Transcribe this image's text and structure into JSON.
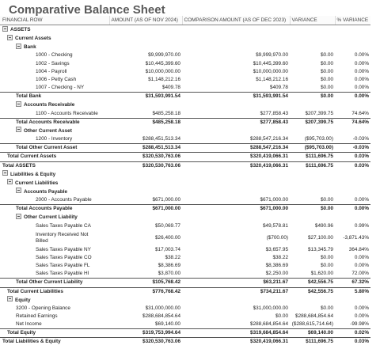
{
  "title": "Comparative Balance Sheet",
  "headers": {
    "financial_row": "FINANCIAL ROW",
    "amount": "AMOUNT (AS OF NOV 2024)",
    "comparison": "COMPARISON AMOUNT (AS OF DEC 2023)",
    "variance": "VARIANCE",
    "pct_variance": "% VARIANCE"
  },
  "rows": [
    {
      "label": "ASSETS",
      "indent": 0,
      "type": "section",
      "toggle": true,
      "amount": "",
      "comparison": "",
      "variance": "",
      "pct": ""
    },
    {
      "label": "Current Assets",
      "indent": 1,
      "type": "section",
      "toggle": true,
      "amount": "",
      "comparison": "",
      "variance": "",
      "pct": ""
    },
    {
      "label": "Bank",
      "indent": 2,
      "type": "section",
      "toggle": true,
      "amount": "",
      "comparison": "",
      "variance": "",
      "pct": ""
    },
    {
      "label": "1000 - Checking",
      "indent": 3,
      "type": "item",
      "amount": "$9,999,970.00",
      "comparison": "$9,999,970.00",
      "variance": "$0.00",
      "pct": "0.00%"
    },
    {
      "label": "1002 - Savings",
      "indent": 3,
      "type": "item",
      "amount": "$10,445,399.60",
      "comparison": "$10,445,399.60",
      "variance": "$0.00",
      "pct": "0.00%"
    },
    {
      "label": "1004 - Payroll",
      "indent": 3,
      "type": "item",
      "amount": "$10,000,000.00",
      "comparison": "$10,000,000.00",
      "variance": "$0.00",
      "pct": "0.00%"
    },
    {
      "label": "1006 - Petty Cash",
      "indent": 3,
      "type": "item",
      "amount": "$1,148,212.16",
      "comparison": "$1,148,212.16",
      "variance": "$0.00",
      "pct": "0.00%"
    },
    {
      "label": "1007 - Checking - NY",
      "indent": 3,
      "type": "item",
      "amount": "$409.78",
      "comparison": "$409.78",
      "variance": "$0.00",
      "pct": "0.00%"
    },
    {
      "label": "Total Bank",
      "indent": 2,
      "type": "total",
      "amount": "$31,593,991.54",
      "comparison": "$31,593,991.54",
      "variance": "$0.00",
      "pct": "0.00%"
    },
    {
      "label": "Accounts Receivable",
      "indent": 2,
      "type": "section",
      "toggle": true,
      "amount": "",
      "comparison": "",
      "variance": "",
      "pct": ""
    },
    {
      "label": "1100 - Accounts Receivable",
      "indent": 3,
      "type": "item",
      "amount": "$485,258.18",
      "comparison": "$277,858.43",
      "variance": "$207,399.75",
      "pct": "74.64%"
    },
    {
      "label": "Total Accounts Receivable",
      "indent": 2,
      "type": "total",
      "amount": "$485,258.18",
      "comparison": "$277,858.43",
      "variance": "$207,399.75",
      "pct": "74.64%"
    },
    {
      "label": "Other Current Asset",
      "indent": 2,
      "type": "section",
      "toggle": true,
      "amount": "",
      "comparison": "",
      "variance": "",
      "pct": ""
    },
    {
      "label": "1200 - Inventory",
      "indent": 3,
      "type": "item",
      "amount": "$288,451,513.34",
      "comparison": "$288,547,216.34",
      "variance": "($95,703.00)",
      "pct": "-0.03%"
    },
    {
      "label": "Total Other Current Asset",
      "indent": 2,
      "type": "total",
      "amount": "$288,451,513.34",
      "comparison": "$288,547,216.34",
      "variance": "($95,703.00)",
      "pct": "-0.03%"
    },
    {
      "label": "Total Current Assets",
      "indent": 1,
      "type": "total",
      "amount": "$320,530,763.06",
      "comparison": "$320,419,066.31",
      "variance": "$111,696.75",
      "pct": "0.03%"
    },
    {
      "label": "Total ASSETS",
      "indent": 0,
      "type": "total",
      "amount": "$320,530,763.06",
      "comparison": "$320,419,066.31",
      "variance": "$111,696.75",
      "pct": "0.03%"
    },
    {
      "label": "Liabilities & Equity",
      "indent": 0,
      "type": "section",
      "toggle": true,
      "amount": "",
      "comparison": "",
      "variance": "",
      "pct": ""
    },
    {
      "label": "Current Liabilities",
      "indent": 1,
      "type": "section",
      "toggle": true,
      "amount": "",
      "comparison": "",
      "variance": "",
      "pct": ""
    },
    {
      "label": "Accounts Payable",
      "indent": 2,
      "type": "section",
      "toggle": true,
      "amount": "",
      "comparison": "",
      "variance": "",
      "pct": ""
    },
    {
      "label": "2000 - Accounts Payable",
      "indent": 3,
      "type": "item",
      "amount": "$671,000.00",
      "comparison": "$671,000.00",
      "variance": "$0.00",
      "pct": "0.00%"
    },
    {
      "label": "Total Accounts Payable",
      "indent": 2,
      "type": "total",
      "amount": "$671,000.00",
      "comparison": "$671,000.00",
      "variance": "$0.00",
      "pct": "0.00%"
    },
    {
      "label": "Other Current Liability",
      "indent": 2,
      "type": "section",
      "toggle": true,
      "amount": "",
      "comparison": "",
      "variance": "",
      "pct": ""
    },
    {
      "label": "Sales Taxes Payable CA",
      "indent": 3,
      "type": "item",
      "amount": "$50,069.77",
      "comparison": "$49,578.81",
      "variance": "$490.96",
      "pct": "0.99%"
    },
    {
      "label": "Inventory Received Not Billed",
      "indent": 3,
      "type": "item",
      "tall": true,
      "amount": "$26,400.00",
      "comparison": "($700.00)",
      "variance": "$27,100.00",
      "pct": "-3,871.43%"
    },
    {
      "label": "Sales Taxes Payable NY",
      "indent": 3,
      "type": "item",
      "amount": "$17,003.74",
      "comparison": "$3,657.95",
      "variance": "$13,345.79",
      "pct": "364.84%"
    },
    {
      "label": "Sales Taxes Payable CO",
      "indent": 3,
      "type": "item",
      "amount": "$38.22",
      "comparison": "$38.22",
      "variance": "$0.00",
      "pct": "0.00%"
    },
    {
      "label": "Sales Taxes Payable FL",
      "indent": 3,
      "type": "item",
      "amount": "$8,386.69",
      "comparison": "$8,386.69",
      "variance": "$0.00",
      "pct": "0.00%"
    },
    {
      "label": "Sales Taxes Payable HI",
      "indent": 3,
      "type": "item",
      "amount": "$3,870.00",
      "comparison": "$2,250.00",
      "variance": "$1,620.00",
      "pct": "72.00%"
    },
    {
      "label": "Total Other Current Liability",
      "indent": 2,
      "type": "total",
      "amount": "$105,768.42",
      "comparison": "$63,211.67",
      "variance": "$42,556.75",
      "pct": "67.32%"
    },
    {
      "label": "Total Current Liabilities",
      "indent": 1,
      "type": "total",
      "amount": "$776,768.42",
      "comparison": "$734,211.67",
      "variance": "$42,556.75",
      "pct": "5.80%"
    },
    {
      "label": "Equity",
      "indent": 1,
      "type": "section",
      "toggle": true,
      "amount": "",
      "comparison": "",
      "variance": "",
      "pct": ""
    },
    {
      "label": "3200 - Opening Balance",
      "indent": 2,
      "type": "item",
      "amount": "$31,000,000.00",
      "comparison": "$31,000,000.00",
      "variance": "$0.00",
      "pct": "0.00%"
    },
    {
      "label": "Retained Earnings",
      "indent": 2,
      "type": "item",
      "amount": "$288,684,854.64",
      "comparison": "$0.00",
      "variance": "$288,684,854.64",
      "pct": "0.00%"
    },
    {
      "label": "Net Income",
      "indent": 2,
      "type": "item",
      "amount": "$69,140.00",
      "comparison": "$288,684,854.64",
      "variance": "($288,615,714.64)",
      "pct": "-99.98%"
    },
    {
      "label": "Total Equity",
      "indent": 1,
      "type": "total",
      "amount": "$319,753,994.64",
      "comparison": "$319,684,854.64",
      "variance": "$69,140.00",
      "pct": "0.02%"
    },
    {
      "label": "Total Liabilities & Equity",
      "indent": 0,
      "type": "total",
      "amount": "$320,530,763.06",
      "comparison": "$320,419,066.31",
      "variance": "$111,696.75",
      "pct": "0.03%"
    }
  ]
}
